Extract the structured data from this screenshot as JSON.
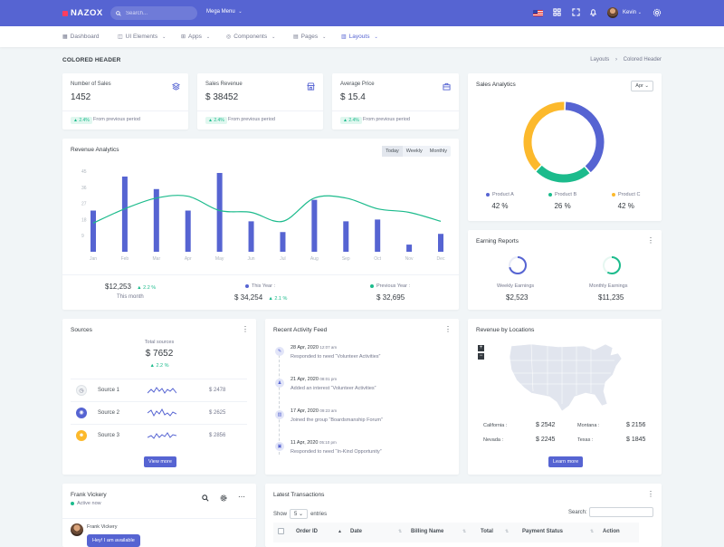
{
  "brand": {
    "name": "NAZOX"
  },
  "topbar": {
    "search_placeholder": "Search...",
    "mega_menu": "Mega Menu",
    "user_name": "Kevin"
  },
  "nav": {
    "items": [
      {
        "label": "Dashboard"
      },
      {
        "label": "UI Elements"
      },
      {
        "label": "Apps"
      },
      {
        "label": "Components"
      },
      {
        "label": "Pages"
      },
      {
        "label": "Layouts"
      }
    ]
  },
  "page": {
    "title": "COLORED HEADER",
    "breadcrumb_parent": "Layouts",
    "breadcrumb_sep": "›",
    "breadcrumb_current": "Colored Header"
  },
  "stats": [
    {
      "label": "Number of Sales",
      "value": "1452",
      "badge": "▲ 2.4%",
      "foot": "From previous period"
    },
    {
      "label": "Sales Revenue",
      "value": "$ 38452",
      "badge": "▲ 2.4%",
      "foot": "From previous period"
    },
    {
      "label": "Average Price",
      "value": "$ 15.4",
      "badge": "▲ 2.4%",
      "foot": "From previous period"
    }
  ],
  "revenue": {
    "title": "Revenue Analytics",
    "ranges": [
      "Today",
      "Weekly",
      "Monthly"
    ],
    "summary_value": "$12,253",
    "summary_change": "▲ 2.2 %",
    "summary_label": "This month",
    "this_year_label": "This Year :",
    "this_year_value": "$ 34,254",
    "this_year_change": "▲ 2.1 %",
    "prev_year_label": "Previous Year :",
    "prev_year_value": "$ 32,695"
  },
  "chart_data": [
    {
      "type": "bar",
      "title": "Revenue Analytics",
      "categories": [
        "Jan",
        "Feb",
        "Mar",
        "Apr",
        "May",
        "Jun",
        "Jul",
        "Aug",
        "Sep",
        "Oct",
        "Nov",
        "Dec"
      ],
      "series": [
        {
          "type": "bar",
          "values": [
            23,
            42,
            35,
            23,
            44,
            17,
            11,
            29,
            17,
            18,
            4,
            10
          ]
        },
        {
          "type": "line",
          "values": [
            16,
            24,
            30,
            31,
            23,
            22,
            17,
            30,
            30,
            24,
            22,
            17
          ]
        }
      ],
      "ylim": [
        0,
        45
      ],
      "yticks": [
        9,
        18,
        27,
        36,
        45
      ],
      "colors": [
        "#5664d2",
        "#1cbb8c"
      ]
    },
    {
      "type": "pie",
      "title": "Sales Analytics",
      "categories": [
        "Product A",
        "Product B",
        "Product C"
      ],
      "values": [
        42,
        26,
        42
      ],
      "colors": [
        "#5664d2",
        "#1cbb8c",
        "#fcb92c"
      ]
    }
  ],
  "sales_analytics": {
    "title": "Sales Analytics",
    "month": "Apr",
    "items": [
      {
        "label": "Product A",
        "value": "42 %",
        "color": "#5664d2"
      },
      {
        "label": "Product B",
        "value": "26 %",
        "color": "#1cbb8c"
      },
      {
        "label": "Product C",
        "value": "42 %",
        "color": "#fcb92c"
      }
    ]
  },
  "earning": {
    "title": "Earning Reports",
    "weekly_label": "Weekly Earnings",
    "weekly_value": "$2,523",
    "monthly_label": "Monthly Earnings",
    "monthly_value": "$11,235"
  },
  "sources": {
    "title": "Sources",
    "total_label": "Total sources",
    "total_value": "$ 7652",
    "change": "▲ 2.2 %",
    "items": [
      {
        "name": "Source 1",
        "value": "$ 2478"
      },
      {
        "name": "Source 2",
        "value": "$ 2625"
      },
      {
        "name": "Source 3",
        "value": "$ 2856"
      }
    ],
    "button": "View more"
  },
  "activity": {
    "title": "Recent Activity Feed",
    "items": [
      {
        "date": "28 Apr, 2020",
        "time": "12:07 am",
        "text": "Responded to need “Volunteer Activities”"
      },
      {
        "date": "21 Apr, 2020",
        "time": "08:01 pm",
        "text": "Added an interest “Volunteer Activities”"
      },
      {
        "date": "17 Apr, 2020",
        "time": "09:23 am",
        "text": "Joined the group “Boardsmanship Forum”"
      },
      {
        "date": "11 Apr, 2020",
        "time": "05:10 pm",
        "text": "Responded to need “In-Kind Opportunity”"
      }
    ]
  },
  "locations": {
    "title": "Revenue by Locations",
    "items": [
      {
        "label": "California :",
        "value": "$ 2542"
      },
      {
        "label": "Montana :",
        "value": "$ 2156"
      },
      {
        "label": "Nevada :",
        "value": "$ 2245"
      },
      {
        "label": "Texas :",
        "value": "$ 1845"
      }
    ],
    "button": "Learn more",
    "zoom_in": "+",
    "zoom_out": "−"
  },
  "chat": {
    "name": "Frank Vickery",
    "status": "Active now",
    "message_sender": "Frank Vickery",
    "message_text": "Hey! I am available"
  },
  "transactions": {
    "title": "Latest Transactions",
    "show_label": "Show",
    "page_size": "5",
    "entries_label": "entries",
    "search_label": "Search:",
    "columns": [
      "Order ID",
      "Date",
      "Billing Name",
      "Total",
      "Payment Status",
      "Action"
    ]
  }
}
